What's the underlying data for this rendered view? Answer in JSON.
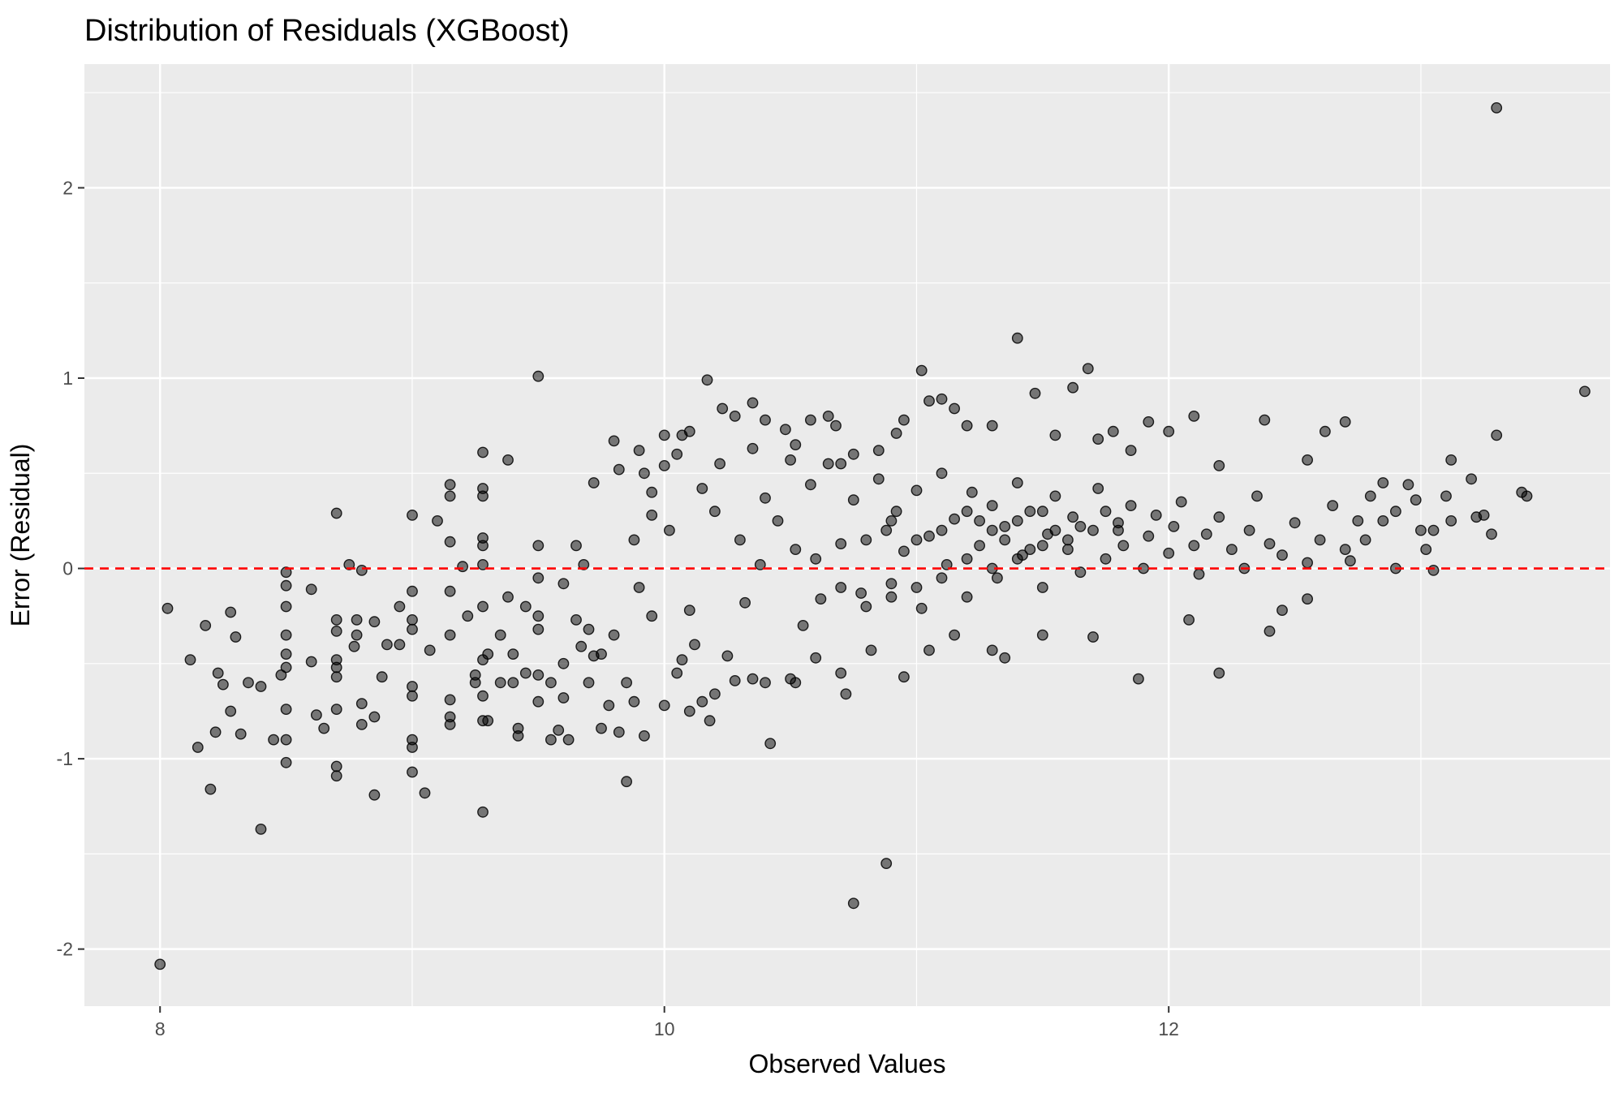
{
  "chart_data": {
    "type": "scatter",
    "title": "Distribution of Residuals (XGBoost)",
    "xlabel": "Observed Values",
    "ylabel": "Error (Residual)",
    "xlim": [
      7.7,
      13.75
    ],
    "ylim": [
      -2.3,
      2.65
    ],
    "x_ticks": [
      8,
      10,
      12
    ],
    "x_tick_labels": [
      "8",
      "10",
      "12"
    ],
    "y_ticks": [
      -2,
      -1,
      0,
      1,
      2
    ],
    "y_tick_labels": [
      "-2",
      "-1",
      "0",
      "1",
      "2"
    ],
    "grid": true,
    "reference_line": {
      "y": 0,
      "style": "dashed",
      "color": "#ff0000"
    },
    "point_color": "#000000",
    "point_opacity": 0.5,
    "panel_background": "#ebebeb",
    "grid_color": "#ffffff",
    "points": [
      [
        8.0,
        -2.08
      ],
      [
        8.03,
        -0.21
      ],
      [
        8.12,
        -0.48
      ],
      [
        8.15,
        -0.94
      ],
      [
        8.18,
        -0.3
      ],
      [
        8.2,
        -1.16
      ],
      [
        8.22,
        -0.86
      ],
      [
        8.23,
        -0.55
      ],
      [
        8.25,
        -0.61
      ],
      [
        8.28,
        -0.75
      ],
      [
        8.28,
        -0.23
      ],
      [
        8.3,
        -0.36
      ],
      [
        8.32,
        -0.87
      ],
      [
        8.35,
        -0.6
      ],
      [
        8.4,
        -0.62
      ],
      [
        8.4,
        -1.37
      ],
      [
        8.45,
        -0.9
      ],
      [
        8.48,
        -0.56
      ],
      [
        8.5,
        -0.02
      ],
      [
        8.5,
        -0.09
      ],
      [
        8.5,
        -0.2
      ],
      [
        8.5,
        -0.35
      ],
      [
        8.5,
        -0.45
      ],
      [
        8.5,
        -0.52
      ],
      [
        8.5,
        -0.74
      ],
      [
        8.5,
        -0.9
      ],
      [
        8.5,
        -1.02
      ],
      [
        8.6,
        -0.11
      ],
      [
        8.6,
        -0.49
      ],
      [
        8.62,
        -0.77
      ],
      [
        8.65,
        -0.84
      ],
      [
        8.7,
        0.29
      ],
      [
        8.7,
        -0.27
      ],
      [
        8.7,
        -0.33
      ],
      [
        8.7,
        -0.48
      ],
      [
        8.7,
        -0.52
      ],
      [
        8.7,
        -0.57
      ],
      [
        8.7,
        -0.74
      ],
      [
        8.7,
        -1.04
      ],
      [
        8.7,
        -1.09
      ],
      [
        8.75,
        0.02
      ],
      [
        8.77,
        -0.41
      ],
      [
        8.78,
        -0.27
      ],
      [
        8.78,
        -0.35
      ],
      [
        8.8,
        -0.71
      ],
      [
        8.8,
        -0.82
      ],
      [
        8.8,
        -0.01
      ],
      [
        8.85,
        -0.28
      ],
      [
        8.85,
        -0.78
      ],
      [
        8.85,
        -1.19
      ],
      [
        8.88,
        -0.57
      ],
      [
        8.9,
        -0.4
      ],
      [
        8.95,
        -0.2
      ],
      [
        8.95,
        -0.4
      ],
      [
        9.0,
        0.28
      ],
      [
        9.0,
        -0.12
      ],
      [
        9.0,
        -0.27
      ],
      [
        9.0,
        -0.32
      ],
      [
        9.0,
        -0.62
      ],
      [
        9.0,
        -0.67
      ],
      [
        9.0,
        -0.9
      ],
      [
        9.0,
        -0.94
      ],
      [
        9.0,
        -1.07
      ],
      [
        9.05,
        -1.18
      ],
      [
        9.07,
        -0.43
      ],
      [
        9.1,
        0.25
      ],
      [
        9.15,
        0.44
      ],
      [
        9.15,
        0.38
      ],
      [
        9.15,
        0.14
      ],
      [
        9.15,
        -0.12
      ],
      [
        9.15,
        -0.35
      ],
      [
        9.15,
        -0.69
      ],
      [
        9.15,
        -0.78
      ],
      [
        9.15,
        -0.82
      ],
      [
        9.2,
        0.01
      ],
      [
        9.22,
        -0.25
      ],
      [
        9.25,
        -0.56
      ],
      [
        9.25,
        -0.6
      ],
      [
        9.28,
        0.61
      ],
      [
        9.28,
        0.42
      ],
      [
        9.28,
        0.38
      ],
      [
        9.28,
        0.16
      ],
      [
        9.28,
        0.12
      ],
      [
        9.28,
        0.02
      ],
      [
        9.28,
        -0.2
      ],
      [
        9.28,
        -0.48
      ],
      [
        9.28,
        -0.67
      ],
      [
        9.28,
        -0.8
      ],
      [
        9.28,
        -1.28
      ],
      [
        9.3,
        -0.45
      ],
      [
        9.35,
        -0.35
      ],
      [
        9.38,
        0.57
      ],
      [
        9.38,
        -0.15
      ],
      [
        9.4,
        -0.45
      ],
      [
        9.42,
        -0.84
      ],
      [
        9.42,
        -0.88
      ],
      [
        9.45,
        -0.2
      ],
      [
        9.5,
        1.01
      ],
      [
        9.5,
        0.12
      ],
      [
        9.5,
        -0.05
      ],
      [
        9.5,
        -0.25
      ],
      [
        9.5,
        -0.32
      ],
      [
        9.5,
        -0.56
      ],
      [
        9.55,
        -0.6
      ],
      [
        9.6,
        -0.08
      ],
      [
        9.6,
        -0.5
      ],
      [
        9.62,
        -0.9
      ],
      [
        9.65,
        0.12
      ],
      [
        9.67,
        -0.41
      ],
      [
        9.68,
        0.02
      ],
      [
        9.7,
        -0.6
      ],
      [
        9.72,
        -0.46
      ],
      [
        9.75,
        -0.84
      ],
      [
        9.78,
        -0.72
      ],
      [
        9.8,
        0.67
      ],
      [
        9.82,
        0.52
      ],
      [
        9.82,
        -0.86
      ],
      [
        9.85,
        -0.6
      ],
      [
        9.88,
        0.15
      ],
      [
        9.9,
        -0.1
      ],
      [
        9.92,
        0.5
      ],
      [
        9.95,
        0.4
      ],
      [
        9.95,
        -0.25
      ],
      [
        10.0,
        0.54
      ],
      [
        10.02,
        0.2
      ],
      [
        10.05,
        0.6
      ],
      [
        10.07,
        -0.48
      ],
      [
        10.1,
        -0.22
      ],
      [
        10.12,
        -0.4
      ],
      [
        10.15,
        0.42
      ],
      [
        10.18,
        -0.8
      ],
      [
        10.2,
        0.3
      ],
      [
        10.22,
        0.55
      ],
      [
        10.25,
        -0.46
      ],
      [
        10.28,
        -0.59
      ],
      [
        10.3,
        0.15
      ],
      [
        10.32,
        -0.18
      ],
      [
        10.35,
        0.63
      ],
      [
        10.38,
        0.02
      ],
      [
        10.4,
        0.37
      ],
      [
        10.42,
        -0.92
      ],
      [
        10.45,
        0.25
      ],
      [
        10.5,
        0.57
      ],
      [
        10.5,
        -0.58
      ],
      [
        10.52,
        0.1
      ],
      [
        10.55,
        -0.3
      ],
      [
        10.58,
        0.44
      ],
      [
        10.6,
        0.05
      ],
      [
        10.62,
        -0.16
      ],
      [
        10.65,
        0.55
      ],
      [
        10.7,
        0.13
      ],
      [
        10.72,
        -0.66
      ],
      [
        10.75,
        0.36
      ],
      [
        10.78,
        -0.13
      ],
      [
        10.8,
        0.15
      ],
      [
        10.82,
        -0.43
      ],
      [
        10.85,
        0.47
      ],
      [
        10.88,
        0.2
      ],
      [
        10.9,
        -0.08
      ],
      [
        10.92,
        0.3
      ],
      [
        10.95,
        0.09
      ],
      [
        11.0,
        0.41
      ],
      [
        11.02,
        -0.21
      ],
      [
        11.05,
        0.17
      ],
      [
        11.1,
        0.5
      ],
      [
        11.12,
        0.02
      ],
      [
        11.15,
        0.26
      ],
      [
        11.2,
        -0.15
      ],
      [
        11.22,
        0.4
      ],
      [
        11.25,
        0.12
      ],
      [
        11.3,
        0.33
      ],
      [
        11.32,
        -0.05
      ],
      [
        11.35,
        0.22
      ],
      [
        11.4,
        0.45
      ],
      [
        11.42,
        0.07
      ],
      [
        11.45,
        0.3
      ],
      [
        11.5,
        -0.1
      ],
      [
        11.52,
        0.18
      ],
      [
        11.55,
        0.38
      ],
      [
        11.6,
        0.1
      ],
      [
        11.62,
        0.27
      ],
      [
        11.65,
        -0.02
      ],
      [
        11.7,
        0.2
      ],
      [
        11.72,
        0.42
      ],
      [
        11.75,
        0.05
      ],
      [
        11.8,
        0.24
      ],
      [
        11.82,
        0.12
      ],
      [
        11.85,
        0.33
      ],
      [
        11.9,
        0.0
      ],
      [
        11.92,
        0.17
      ],
      [
        11.95,
        0.28
      ],
      [
        12.0,
        0.08
      ],
      [
        12.02,
        0.22
      ],
      [
        12.05,
        0.35
      ],
      [
        12.1,
        0.12
      ],
      [
        12.12,
        -0.03
      ],
      [
        12.15,
        0.18
      ],
      [
        12.2,
        0.27
      ],
      [
        12.25,
        0.1
      ],
      [
        12.3,
        0.0
      ],
      [
        12.32,
        0.2
      ],
      [
        12.35,
        0.38
      ],
      [
        12.4,
        0.13
      ],
      [
        12.45,
        0.07
      ],
      [
        12.5,
        0.24
      ],
      [
        12.55,
        0.03
      ],
      [
        12.6,
        0.15
      ],
      [
        12.65,
        0.33
      ],
      [
        12.7,
        0.1
      ],
      [
        12.72,
        0.04
      ],
      [
        12.75,
        0.25
      ],
      [
        10.0,
        0.7
      ],
      [
        10.07,
        0.7
      ],
      [
        10.1,
        0.72
      ],
      [
        9.95,
        0.28
      ],
      [
        9.9,
        0.62
      ],
      [
        9.72,
        0.45
      ],
      [
        10.17,
        0.99
      ],
      [
        10.23,
        0.84
      ],
      [
        10.28,
        0.8
      ],
      [
        10.35,
        0.87
      ],
      [
        10.4,
        0.78
      ],
      [
        10.48,
        0.73
      ],
      [
        10.52,
        0.65
      ],
      [
        10.58,
        0.78
      ],
      [
        10.65,
        0.8
      ],
      [
        10.68,
        0.75
      ],
      [
        10.7,
        0.55
      ],
      [
        10.75,
        0.6
      ],
      [
        10.85,
        0.62
      ],
      [
        10.92,
        0.71
      ],
      [
        10.95,
        0.78
      ],
      [
        11.02,
        1.04
      ],
      [
        11.05,
        0.88
      ],
      [
        11.1,
        0.89
      ],
      [
        11.15,
        0.84
      ],
      [
        11.2,
        0.75
      ],
      [
        11.3,
        0.75
      ],
      [
        11.4,
        1.21
      ],
      [
        11.47,
        0.92
      ],
      [
        11.55,
        0.7
      ],
      [
        11.62,
        0.95
      ],
      [
        11.68,
        1.05
      ],
      [
        11.72,
        0.68
      ],
      [
        11.78,
        0.72
      ],
      [
        11.85,
        0.62
      ],
      [
        11.92,
        0.77
      ],
      [
        12.0,
        0.72
      ],
      [
        12.1,
        0.8
      ],
      [
        12.2,
        0.54
      ],
      [
        12.38,
        0.78
      ],
      [
        12.55,
        0.57
      ],
      [
        12.62,
        0.72
      ],
      [
        12.7,
        0.77
      ],
      [
        12.95,
        0.44
      ],
      [
        13.12,
        0.57
      ],
      [
        13.3,
        0.7
      ],
      [
        13.3,
        2.42
      ],
      [
        13.4,
        0.4
      ],
      [
        13.42,
        0.38
      ],
      [
        13.65,
        0.93
      ],
      [
        12.8,
        0.38
      ],
      [
        12.85,
        0.25
      ],
      [
        12.9,
        0.3
      ],
      [
        12.98,
        0.36
      ],
      [
        13.0,
        0.2
      ],
      [
        13.02,
        0.1
      ],
      [
        13.05,
        0.2
      ],
      [
        13.1,
        0.38
      ],
      [
        13.12,
        0.25
      ],
      [
        13.2,
        0.47
      ],
      [
        13.22,
        0.27
      ],
      [
        13.25,
        0.28
      ],
      [
        13.28,
        0.18
      ],
      [
        12.9,
        0.0
      ],
      [
        13.05,
        -0.01
      ],
      [
        12.85,
        0.45
      ],
      [
        12.78,
        0.15
      ],
      [
        12.55,
        -0.16
      ],
      [
        12.45,
        -0.22
      ],
      [
        12.4,
        -0.33
      ],
      [
        12.2,
        -0.55
      ],
      [
        12.08,
        -0.27
      ],
      [
        11.88,
        -0.58
      ],
      [
        11.7,
        -0.36
      ],
      [
        11.5,
        -0.35
      ],
      [
        11.35,
        -0.47
      ],
      [
        11.3,
        -0.43
      ],
      [
        11.15,
        -0.35
      ],
      [
        11.05,
        -0.43
      ],
      [
        10.95,
        -0.57
      ],
      [
        10.88,
        -1.55
      ],
      [
        10.75,
        -1.76
      ],
      [
        10.7,
        -0.55
      ],
      [
        10.6,
        -0.47
      ],
      [
        10.52,
        -0.6
      ],
      [
        10.4,
        -0.6
      ],
      [
        10.35,
        -0.58
      ],
      [
        10.2,
        -0.66
      ],
      [
        10.15,
        -0.7
      ],
      [
        10.1,
        -0.75
      ],
      [
        10.05,
        -0.55
      ],
      [
        10.0,
        -0.72
      ],
      [
        9.92,
        -0.88
      ],
      [
        9.85,
        -1.12
      ],
      [
        9.88,
        -0.7
      ],
      [
        9.8,
        -0.35
      ],
      [
        9.75,
        -0.45
      ],
      [
        9.7,
        -0.32
      ],
      [
        9.65,
        -0.27
      ],
      [
        9.6,
        -0.68
      ],
      [
        9.58,
        -0.85
      ],
      [
        9.55,
        -0.9
      ],
      [
        9.5,
        -0.7
      ],
      [
        9.45,
        -0.55
      ],
      [
        9.4,
        -0.6
      ],
      [
        9.35,
        -0.6
      ],
      [
        9.3,
        -0.8
      ],
      [
        11.2,
        0.3
      ],
      [
        11.25,
        0.25
      ],
      [
        11.3,
        0.2
      ],
      [
        11.35,
        0.15
      ],
      [
        11.4,
        0.25
      ],
      [
        11.45,
        0.1
      ],
      [
        11.5,
        0.3
      ],
      [
        11.55,
        0.2
      ],
      [
        11.6,
        0.15
      ],
      [
        11.1,
        0.2
      ],
      [
        11.0,
        0.15
      ],
      [
        10.9,
        0.25
      ],
      [
        11.8,
        0.2
      ],
      [
        11.75,
        0.3
      ],
      [
        11.65,
        0.22
      ],
      [
        11.5,
        0.12
      ],
      [
        11.4,
        0.05
      ],
      [
        11.3,
        0.0
      ],
      [
        11.2,
        0.05
      ],
      [
        11.1,
        -0.05
      ],
      [
        11.0,
        -0.1
      ],
      [
        10.9,
        -0.15
      ],
      [
        10.8,
        -0.2
      ],
      [
        10.7,
        -0.1
      ]
    ]
  }
}
